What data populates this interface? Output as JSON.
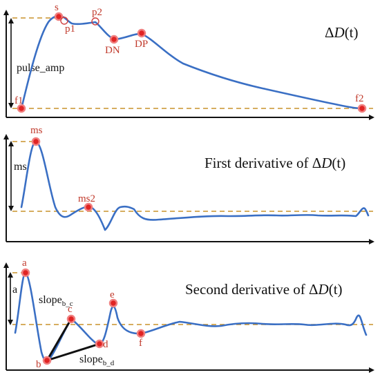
{
  "panel1": {
    "title_delta": "Δ",
    "title_var": "D",
    "title_arg": "(t)",
    "pulse_amp_label": "pulse_amp",
    "points": {
      "s": "s",
      "p1": "p1",
      "p2": "p2",
      "dn": "DN",
      "dp": "DP",
      "f1": "f1",
      "f2": "f2"
    }
  },
  "panel2": {
    "title_prefix": "First derivative of ",
    "title_delta": "Δ",
    "title_var": "D",
    "title_arg": "(t)",
    "ms_label": "ms",
    "points": {
      "ms": "ms",
      "ms2": "ms2"
    }
  },
  "panel3": {
    "title_prefix": "Second derivative of ",
    "title_delta": "Δ",
    "title_var": "D",
    "title_arg": "(t)",
    "a_label": "a",
    "slope_bc_main": "slope",
    "slope_bc_sub": "b_c",
    "slope_bd_main": "slope",
    "slope_bd_sub": "b_d",
    "points": {
      "a": "a",
      "b": "b",
      "c": "c",
      "d": "d",
      "e": "e",
      "f": "f"
    }
  },
  "colors": {
    "waveform": "#3a6fc4",
    "baseline": "#c8922a",
    "marker": "#e02424",
    "label": "#c0392b"
  }
}
